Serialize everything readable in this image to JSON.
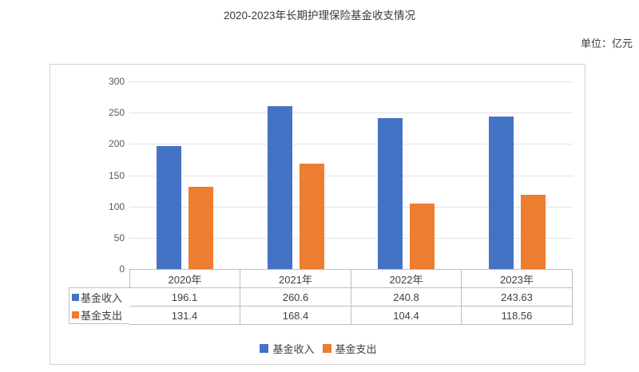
{
  "page": {
    "title": "2020-2023年长期护理保险基金收支情况",
    "unit_label": "单位：亿元"
  },
  "chart_data": {
    "type": "bar",
    "title": "2020-2023年长期护理保险基金收支情况",
    "unit": "亿元",
    "categories": [
      "2020年",
      "2021年",
      "2022年",
      "2023年"
    ],
    "series": [
      {
        "name": "基金收入",
        "color": "#4472C4",
        "values": [
          196.1,
          260.6,
          240.8,
          243.63
        ]
      },
      {
        "name": "基金支出",
        "color": "#ED7D31",
        "values": [
          131.4,
          168.4,
          104.4,
          118.56
        ]
      }
    ],
    "ylim": [
      0,
      300
    ],
    "ytick_step": 50,
    "grid": true,
    "legend_position": "bottom",
    "data_table": true
  }
}
